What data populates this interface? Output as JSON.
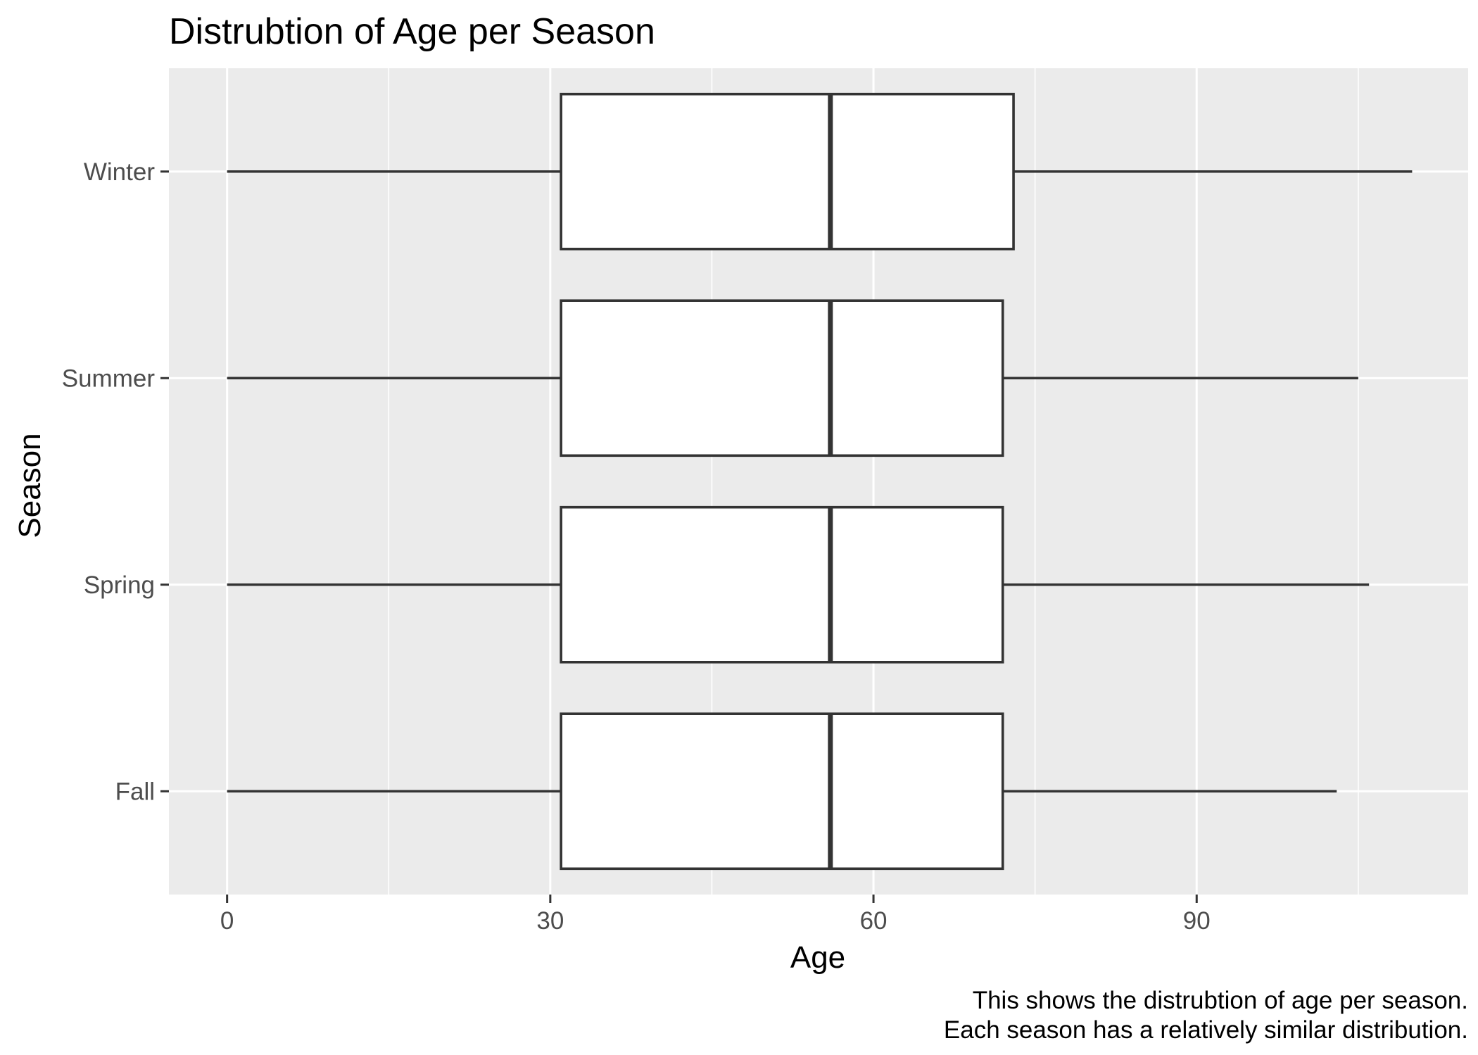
{
  "chart_data": {
    "type": "boxplot",
    "title": "Distrubtion of Age per Season",
    "xlabel": "Age",
    "ylabel": "Season",
    "caption": [
      "This shows the distrubtion of age per season.",
      "Each season has a relatively similar distribution."
    ],
    "xlim": [
      -5.4,
      115.2
    ],
    "x_ticks": [
      0,
      30,
      60,
      90
    ],
    "x_tick_labels": [
      "0",
      "30",
      "60",
      "90"
    ],
    "categories": [
      "Winter",
      "Summer",
      "Spring",
      "Fall"
    ],
    "series": [
      {
        "category": "Winter",
        "min": 0,
        "q1": 31,
        "median": 56,
        "q3": 73,
        "max": 110
      },
      {
        "category": "Summer",
        "min": 0,
        "q1": 31,
        "median": 56,
        "q3": 72,
        "max": 105
      },
      {
        "category": "Spring",
        "min": 0,
        "q1": 31,
        "median": 56,
        "q3": 72,
        "max": 106
      },
      {
        "category": "Fall",
        "min": 0,
        "q1": 31,
        "median": 56,
        "q3": 72,
        "max": 103
      }
    ],
    "grid": true,
    "legend": "none",
    "colors": {
      "panel_background": "#ebebeb",
      "grid_line": "#ffffff",
      "box_fill": "#ffffff",
      "box_stroke": "#333333",
      "tick_label": "#4d4d4d",
      "tick_mark": "#333333",
      "text": "#000000"
    }
  }
}
